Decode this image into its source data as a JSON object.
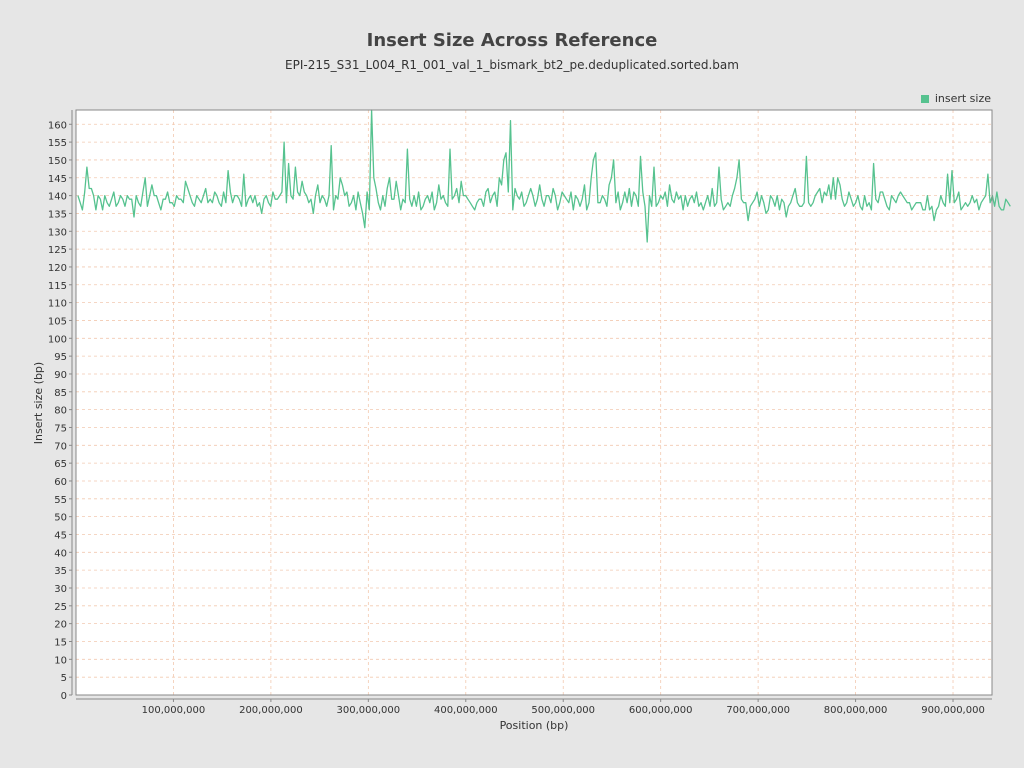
{
  "chart_data": {
    "type": "line",
    "title": "Insert Size Across Reference",
    "subtitle": "EPI-215_S31_L004_R1_001_val_1_bismark_bt2_pe.deduplicated.sorted.bam",
    "xlabel": "Position (bp)",
    "ylabel": "Insert size (bp)",
    "xlim": [
      0,
      940000000
    ],
    "ylim": [
      0,
      164
    ],
    "x_ticks": [
      100000000,
      200000000,
      300000000,
      400000000,
      500000000,
      600000000,
      700000000,
      800000000,
      900000000
    ],
    "x_tick_labels": [
      "100,000,000",
      "200,000,000",
      "300,000,000",
      "400,000,000",
      "500,000,000",
      "600,000,000",
      "700,000,000",
      "800,000,000",
      "900,000,000"
    ],
    "y_ticks": [
      0,
      5,
      10,
      15,
      20,
      25,
      30,
      35,
      40,
      45,
      50,
      55,
      60,
      65,
      70,
      75,
      80,
      85,
      90,
      95,
      100,
      105,
      110,
      115,
      120,
      125,
      130,
      135,
      140,
      145,
      150,
      155,
      160
    ],
    "grid": true,
    "legend": "top-right",
    "series": [
      {
        "name": "insert size",
        "color": "#56c28f",
        "x_start": 2000000,
        "x_step": 2300000,
        "values": [
          140,
          138,
          136,
          141,
          148,
          142,
          142,
          140,
          136,
          140,
          139,
          136,
          140,
          138,
          137,
          139,
          141,
          137,
          138,
          140,
          139,
          137,
          140,
          139,
          139,
          134,
          140,
          138,
          137,
          141,
          145,
          137,
          140,
          143,
          140,
          140,
          138,
          136,
          139,
          139,
          141,
          138,
          138,
          137,
          140,
          139,
          139,
          138,
          144,
          142,
          140,
          138,
          137,
          140,
          139,
          138,
          140,
          142,
          138,
          139,
          138,
          141,
          140,
          138,
          137,
          141,
          138,
          147,
          141,
          138,
          140,
          140,
          139,
          137,
          146,
          137,
          139,
          140,
          138,
          140,
          137,
          138,
          135,
          139,
          140,
          138,
          137,
          141,
          139,
          139,
          140,
          141,
          155,
          138,
          149,
          140,
          139,
          148,
          141,
          140,
          144,
          141,
          140,
          138,
          139,
          135,
          140,
          143,
          138,
          140,
          139,
          137,
          140,
          154,
          136,
          140,
          139,
          145,
          143,
          140,
          141,
          137,
          138,
          140,
          136,
          141,
          138,
          135,
          131,
          141,
          136,
          164,
          145,
          142,
          138,
          136,
          140,
          137,
          142,
          145,
          139,
          139,
          144,
          140,
          136,
          139,
          138,
          153,
          139,
          137,
          140,
          137,
          141,
          136,
          137,
          139,
          140,
          138,
          141,
          136,
          138,
          143,
          139,
          140,
          138,
          137,
          153,
          139,
          140,
          142,
          138,
          144,
          140,
          140,
          139,
          138,
          137,
          136,
          138,
          139,
          139,
          137,
          141,
          142,
          138,
          140,
          141,
          137,
          145,
          143,
          150,
          152,
          141,
          161,
          136,
          142,
          140,
          139,
          141,
          137,
          138,
          140,
          142,
          140,
          137,
          139,
          143,
          139,
          137,
          140,
          140,
          138,
          142,
          140,
          136,
          138,
          141,
          140,
          139,
          138,
          141,
          136,
          140,
          139,
          137,
          139,
          143,
          136,
          138,
          145,
          150,
          152,
          138,
          138,
          140,
          139,
          137,
          143,
          145,
          150,
          138,
          141,
          136,
          138,
          141,
          138,
          142,
          137,
          141,
          140,
          137,
          151,
          141,
          137,
          127,
          140,
          137,
          148,
          137,
          138,
          140,
          139,
          141,
          137,
          143,
          139,
          138,
          141,
          139,
          140,
          136,
          140,
          137,
          139,
          140,
          138,
          141,
          137,
          138,
          136,
          138,
          140,
          137,
          142,
          137,
          138,
          148,
          139,
          136,
          137,
          138,
          137,
          140,
          142,
          145,
          150,
          139,
          138,
          138,
          133,
          137,
          138,
          139,
          141,
          137,
          140,
          138,
          135,
          136,
          140,
          139,
          137,
          140,
          136,
          139,
          138,
          134,
          137,
          138,
          140,
          142,
          138,
          137,
          137,
          138,
          151,
          138,
          137,
          138,
          140,
          141,
          142,
          138,
          141,
          140,
          143,
          139,
          145,
          139,
          145,
          143,
          139,
          137,
          138,
          141,
          139,
          137,
          138,
          140,
          137,
          136,
          140,
          137,
          138,
          136,
          149,
          139,
          138,
          141,
          141,
          139,
          137,
          136,
          140,
          139,
          138,
          140,
          141,
          140,
          139,
          138,
          138,
          136,
          137,
          138,
          138,
          138,
          136,
          136,
          140,
          136,
          137,
          133,
          136,
          137,
          140,
          138,
          137,
          146,
          138,
          147,
          138,
          139,
          141,
          136,
          137,
          138,
          137,
          138,
          140,
          138,
          139,
          136,
          138,
          139,
          140,
          146,
          138,
          140,
          137,
          141,
          137,
          136,
          136,
          139,
          138,
          137
        ]
      }
    ]
  }
}
